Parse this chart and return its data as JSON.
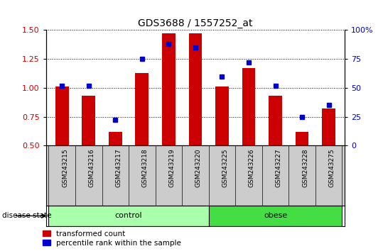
{
  "title": "GDS3688 / 1557252_at",
  "samples": [
    "GSM243215",
    "GSM243216",
    "GSM243217",
    "GSM243218",
    "GSM243219",
    "GSM243220",
    "GSM243225",
    "GSM243226",
    "GSM243227",
    "GSM243228",
    "GSM243275"
  ],
  "transformed_count": [
    1.01,
    0.93,
    0.62,
    1.13,
    1.47,
    1.47,
    1.01,
    1.17,
    0.93,
    0.62,
    0.82
  ],
  "percentile_rank": [
    52,
    52,
    22,
    75,
    88,
    85,
    60,
    72,
    52,
    25,
    35
  ],
  "ylim_left": [
    0.5,
    1.5
  ],
  "ylim_right": [
    0,
    100
  ],
  "yticks_left": [
    0.5,
    0.75,
    1.0,
    1.25,
    1.5
  ],
  "yticks_right": [
    0,
    25,
    50,
    75,
    100
  ],
  "ytick_labels_right": [
    "0",
    "25",
    "50",
    "75",
    "100%"
  ],
  "bar_color": "#cc0000",
  "dot_color": "#0000cc",
  "groups": [
    {
      "label": "control",
      "indices": [
        0,
        1,
        2,
        3,
        4,
        5
      ],
      "color": "#aaffaa"
    },
    {
      "label": "obese",
      "indices": [
        6,
        7,
        8,
        9,
        10
      ],
      "color": "#44dd44"
    }
  ],
  "disease_state_label": "disease state",
  "legend_bar_label": "transformed count",
  "legend_dot_label": "percentile rank within the sample",
  "label_area_color": "#cccccc",
  "bar_width": 0.5,
  "base_value": 0.5,
  "figsize": [
    5.39,
    3.54
  ],
  "dpi": 100
}
